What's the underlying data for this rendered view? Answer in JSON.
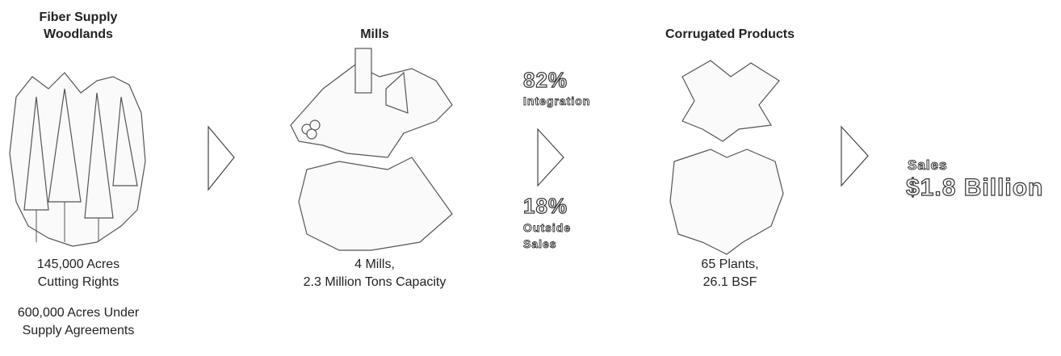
{
  "stages": [
    {
      "title": [
        "Fiber Supply",
        "Woodlands"
      ],
      "captions": [
        [
          "145,000 Acres",
          "Cutting Rights"
        ],
        [
          "600,000 Acres Under",
          "Supply Agreements"
        ]
      ]
    },
    {
      "title": [
        "Mills"
      ],
      "captions": [
        [
          "4 Mills,",
          "2.3 Million Tons Capacity"
        ]
      ]
    },
    {
      "title": [
        "Corrugated Products"
      ],
      "captions": [
        [
          "65 Plants,",
          "26.1 BSF"
        ]
      ]
    }
  ],
  "split": [
    {
      "percent": "82%",
      "label": [
        "Integration"
      ]
    },
    {
      "percent": "18%",
      "label": [
        "Outside",
        "Sales"
      ]
    }
  ],
  "result": {
    "label": "Sales",
    "value": "$1.8 Billion"
  }
}
